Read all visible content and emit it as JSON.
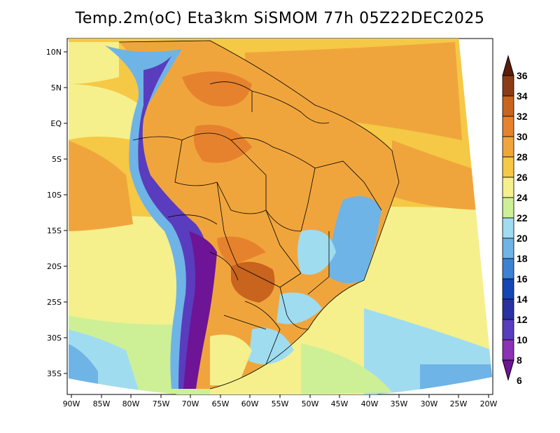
{
  "map": {
    "title": "Temp.2m(oC) Eta3km SiSMOM 77h 05Z22DEC2025",
    "variable": "Temp.2m",
    "units": "oC",
    "model": "Eta3km SiSMOM",
    "lat_labels": [
      "10N",
      "5N",
      "EQ",
      "5S",
      "10S",
      "15S",
      "20S",
      "25S",
      "30S",
      "35S"
    ],
    "lon_labels": [
      "90W",
      "85W",
      "80W",
      "75W",
      "70W",
      "65W",
      "60W",
      "55W",
      "50W",
      "45W",
      "40W",
      "35W",
      "30W",
      "25W",
      "20W"
    ]
  },
  "colorbar": {
    "labels": [
      "36",
      "34",
      "32",
      "30",
      "28",
      "26",
      "24",
      "22",
      "20",
      "18",
      "16",
      "14",
      "12",
      "10",
      "8",
      "6"
    ],
    "colors": [
      "#5a1e0a",
      "#8c3c14",
      "#c8641e",
      "#e6822d",
      "#f0a53c",
      "#f5c846",
      "#f5f08c",
      "#cdf096",
      "#a0dcf0",
      "#6eb4e6",
      "#3c82d2",
      "#1446b4",
      "#2832a0",
      "#5a3cbe",
      "#8c32b4",
      "#6e1496"
    ]
  }
}
